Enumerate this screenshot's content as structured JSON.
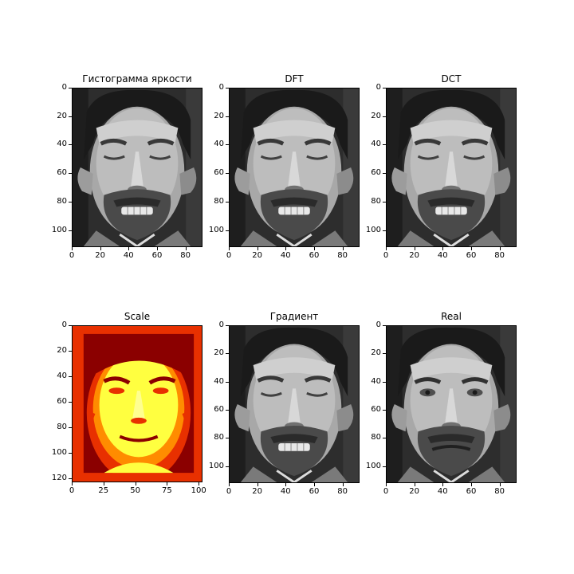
{
  "colors": {
    "background": "#ffffff",
    "axis": "#000000",
    "gray_dark": "#2a2a2a",
    "gray_mid": "#6d6d6d",
    "gray_light": "#bcbcbc",
    "heat_dark": "#8b0000",
    "heat_red": "#e83000",
    "heat_orange": "#ff8c00",
    "heat_yellow": "#ffff40"
  },
  "panels": [
    {
      "title": "Гистограмма яркости",
      "image": "grayscale face photo, eyes closed, smiling",
      "colormap": "gray",
      "x_ticks": [
        "0",
        "20",
        "40",
        "60",
        "80"
      ],
      "y_ticks": [
        "0",
        "20",
        "40",
        "60",
        "80",
        "100"
      ]
    },
    {
      "title": "DFT",
      "image": "grayscale face photo, eyes closed, smiling",
      "colormap": "gray",
      "x_ticks": [
        "0",
        "20",
        "40",
        "60",
        "80"
      ],
      "y_ticks": [
        "0",
        "20",
        "40",
        "60",
        "80",
        "100"
      ]
    },
    {
      "title": "DCT",
      "image": "grayscale face photo, eyes closed, smiling",
      "colormap": "gray",
      "x_ticks": [
        "0",
        "20",
        "40",
        "60",
        "80"
      ],
      "y_ticks": [
        "0",
        "20",
        "40",
        "60",
        "80",
        "100"
      ]
    },
    {
      "title": "Scale",
      "image": "face photo in hot colormap with red border",
      "colormap": "hot",
      "x_ticks": [
        "0",
        "25",
        "50",
        "75",
        "100"
      ],
      "y_ticks": [
        "0",
        "20",
        "40",
        "60",
        "80",
        "100",
        "120"
      ]
    },
    {
      "title": "Градиент",
      "image": "grayscale face photo, eyes closed, smiling",
      "colormap": "gray",
      "x_ticks": [
        "0",
        "20",
        "40",
        "60",
        "80"
      ],
      "y_ticks": [
        "0",
        "20",
        "40",
        "60",
        "80",
        "100"
      ]
    },
    {
      "title": "Real",
      "image": "grayscale face photo, eyes open, neutral",
      "colormap": "gray",
      "x_ticks": [
        "0",
        "20",
        "40",
        "60",
        "80"
      ],
      "y_ticks": [
        "0",
        "20",
        "40",
        "60",
        "80",
        "100"
      ]
    }
  ]
}
